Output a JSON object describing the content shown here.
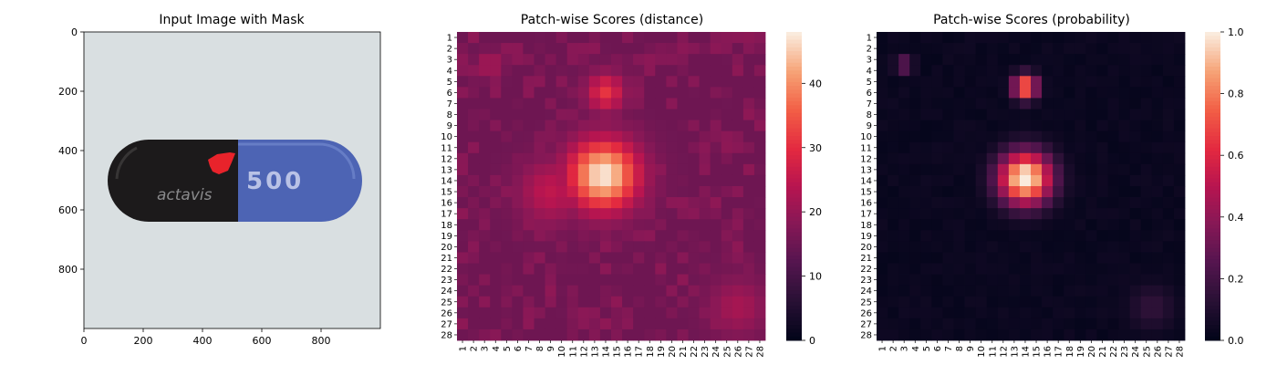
{
  "chart_data": [
    {
      "type": "image",
      "title": "Input Image with Mask",
      "x_ticks": [
        0,
        200,
        400,
        600,
        800
      ],
      "y_ticks": [
        0,
        200,
        400,
        600,
        800
      ],
      "xlim": [
        0,
        1000
      ],
      "ylim": [
        1000,
        0
      ],
      "image": {
        "background": "#d9dfe1",
        "capsule_left_color": "#1c1a1b",
        "capsule_right_color": "#4d64b4",
        "capsule_text_dark": "actavis",
        "capsule_text_light": "500",
        "mask_color": "#e8232b"
      }
    },
    {
      "type": "heatmap",
      "title": "Patch-wise Scores (distance)",
      "x_tick_labels": [
        "1",
        "2",
        "3",
        "4",
        "5",
        "6",
        "7",
        "8",
        "9",
        "10",
        "11",
        "12",
        "13",
        "14",
        "15",
        "16",
        "17",
        "18",
        "19",
        "20",
        "21",
        "22",
        "23",
        "24",
        "25",
        "26",
        "27",
        "28"
      ],
      "y_tick_labels": [
        "1",
        "2",
        "3",
        "4",
        "5",
        "6",
        "7",
        "8",
        "9",
        "10",
        "11",
        "12",
        "13",
        "14",
        "15",
        "16",
        "17",
        "18",
        "19",
        "20",
        "21",
        "22",
        "23",
        "24",
        "25",
        "26",
        "27",
        "28"
      ],
      "colorbar_ticks": [
        0,
        10,
        20,
        30,
        40
      ],
      "vmin": 0,
      "vmax": 48,
      "colormap": "rocket",
      "hotspots": [
        {
          "row": 13.5,
          "col": 13.8,
          "peak": 48,
          "sigma": 2.2
        },
        {
          "row": 6,
          "col": 14,
          "peak": 31,
          "sigma": 1.2
        },
        {
          "row": 3.5,
          "col": 3.5,
          "peak": 23,
          "sigma": 0.8
        },
        {
          "row": 25.5,
          "col": 26,
          "peak": 22,
          "sigma": 1.8
        },
        {
          "row": 15,
          "col": 9,
          "peak": 25,
          "sigma": 2.0
        }
      ],
      "baseline": 15
    },
    {
      "type": "heatmap",
      "title": "Patch-wise Scores (probability)",
      "x_tick_labels": [
        "1",
        "2",
        "3",
        "4",
        "5",
        "6",
        "7",
        "8",
        "9",
        "10",
        "11",
        "12",
        "13",
        "14",
        "15",
        "16",
        "17",
        "18",
        "19",
        "20",
        "21",
        "22",
        "23",
        "24",
        "25",
        "26",
        "27",
        "28"
      ],
      "y_tick_labels": [
        "1",
        "2",
        "3",
        "4",
        "5",
        "6",
        "7",
        "8",
        "9",
        "10",
        "11",
        "12",
        "13",
        "14",
        "15",
        "16",
        "17",
        "18",
        "19",
        "20",
        "21",
        "22",
        "23",
        "24",
        "25",
        "26",
        "27",
        "28"
      ],
      "colorbar_ticks": [
        "0.0",
        "0.2",
        "0.4",
        "0.6",
        "0.8",
        "1.0"
      ],
      "vmin": 0,
      "vmax": 1,
      "colormap": "rocket",
      "hotspots": [
        {
          "row": 13.8,
          "col": 14,
          "peak": 1.0,
          "sigma": 1.7
        },
        {
          "row": 5.5,
          "col": 14,
          "peak": 0.8,
          "sigma": 0.8
        },
        {
          "row": 3.5,
          "col": 3,
          "peak": 0.3,
          "sigma": 0.6
        },
        {
          "row": 25.5,
          "col": 25.5,
          "peak": 0.14,
          "sigma": 1.5
        }
      ],
      "baseline": 0.01
    }
  ]
}
